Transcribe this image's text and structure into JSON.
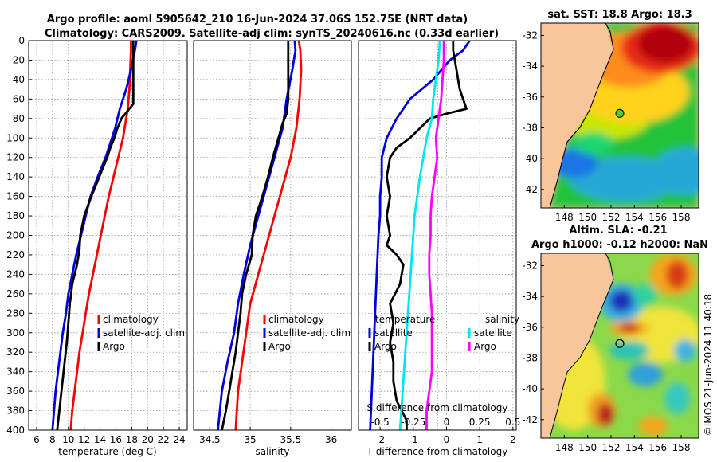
{
  "header": {
    "title_line1": "Argo profile: aoml 5905642_210 16-Jun-2024 37.06S 152.75E (NRT data)",
    "title_line2": "Climatology: CARS2009. Satellite-adj clim: synTS_20240616.nc (0.33d earlier)"
  },
  "colors": {
    "climatology": "#ff0000",
    "satellite": "#0000e0",
    "argo": "#000000",
    "sat_salinity": "#00e5ee",
    "argo_salinity": "#ff00ff"
  },
  "chart_data": [
    {
      "type": "line",
      "name": "temperature",
      "xlabel": "temperature (deg C)",
      "ylabel": "",
      "xlim": [
        5,
        25
      ],
      "ylim": [
        400,
        0
      ],
      "xticks": [
        "6",
        "8",
        "10",
        "12",
        "14",
        "16",
        "18",
        "20",
        "22",
        "24"
      ],
      "yticks": [
        "0",
        "20",
        "40",
        "60",
        "80",
        "100",
        "120",
        "140",
        "160",
        "180",
        "200",
        "220",
        "240",
        "260",
        "280",
        "300",
        "320",
        "340",
        "360",
        "380",
        "400"
      ],
      "series": [
        {
          "name": "climatology",
          "key": "climatology",
          "depth": [
            0,
            10,
            30,
            50,
            70,
            90,
            100,
            120,
            140,
            160,
            180,
            200,
            220,
            240,
            260,
            280,
            300,
            320,
            340,
            360,
            380,
            400
          ],
          "values": [
            17.9,
            17.9,
            17.8,
            17.7,
            17.5,
            17.1,
            16.9,
            16.3,
            15.7,
            15.1,
            14.6,
            14.1,
            13.6,
            13.1,
            12.6,
            12.2,
            11.8,
            11.4,
            11.1,
            10.8,
            10.5,
            10.3
          ]
        },
        {
          "name": "satellite-adj. clim",
          "key": "satellite",
          "depth": [
            0,
            10,
            30,
            50,
            70,
            90,
            100,
            120,
            140,
            160,
            180,
            200,
            220,
            240,
            260,
            280,
            300,
            320,
            340,
            360,
            380,
            400
          ],
          "values": [
            18.6,
            18.4,
            17.9,
            17.3,
            16.5,
            15.9,
            15.5,
            14.7,
            13.7,
            12.8,
            12.2,
            11.6,
            11.0,
            10.5,
            10.0,
            9.7,
            9.3,
            9.0,
            8.7,
            8.4,
            8.2,
            8.0
          ]
        },
        {
          "name": "Argo",
          "key": "argo",
          "depth": [
            0,
            10,
            40,
            65,
            75,
            80,
            90,
            100,
            110,
            120,
            140,
            160,
            180,
            200,
            215,
            230,
            250,
            270,
            290,
            310,
            340,
            370,
            400
          ],
          "values": [
            18.2,
            18.2,
            18.2,
            18.2,
            17.2,
            16.7,
            16.2,
            15.8,
            15.3,
            14.9,
            13.9,
            12.9,
            12.0,
            11.5,
            11.4,
            11.1,
            10.5,
            10.2,
            10.0,
            9.8,
            9.4,
            9.0,
            8.6
          ]
        }
      ],
      "legend": [
        "climatology",
        "satellite-adj. clim",
        "Argo"
      ]
    },
    {
      "type": "line",
      "name": "salinity",
      "xlabel": "salinity",
      "ylabel": "",
      "xlim": [
        34.3,
        36.25
      ],
      "ylim": [
        400,
        0
      ],
      "xticks": [
        "34.5",
        "35",
        "35.5",
        "36"
      ],
      "series": [
        {
          "name": "climatology",
          "key": "climatology",
          "depth": [
            0,
            10,
            30,
            60,
            90,
            120,
            150,
            180,
            210,
            240,
            270,
            300,
            330,
            360,
            400
          ],
          "values": [
            35.6,
            35.62,
            35.63,
            35.61,
            35.57,
            35.5,
            35.4,
            35.3,
            35.2,
            35.1,
            35.0,
            34.95,
            34.9,
            34.85,
            34.82
          ]
        },
        {
          "name": "satellite-adj. clim",
          "key": "satellite",
          "depth": [
            0,
            10,
            30,
            60,
            90,
            120,
            150,
            180,
            210,
            240,
            270,
            300,
            330,
            360,
            400
          ],
          "values": [
            35.55,
            35.56,
            35.52,
            35.45,
            35.4,
            35.3,
            35.2,
            35.1,
            35.0,
            34.92,
            34.85,
            34.8,
            34.72,
            34.65,
            34.6
          ]
        },
        {
          "name": "Argo",
          "key": "argo",
          "depth": [
            0,
            20,
            40,
            60,
            75,
            85,
            100,
            120,
            140,
            160,
            180,
            200,
            220,
            240,
            260,
            280,
            300,
            320,
            340,
            360,
            380,
            400
          ],
          "values": [
            35.47,
            35.47,
            35.47,
            35.47,
            35.45,
            35.4,
            35.35,
            35.28,
            35.22,
            35.15,
            35.07,
            35.03,
            35.02,
            34.95,
            34.9,
            34.88,
            34.85,
            34.82,
            34.78,
            34.74,
            34.7,
            34.65
          ]
        }
      ],
      "legend": [
        "climatology",
        "satellite-adj. clim",
        "Argo"
      ]
    },
    {
      "type": "line",
      "name": "difference",
      "xlabel": "T difference from climatology",
      "xlim": [
        -2.65,
        2.1
      ],
      "ylim": [
        400,
        0
      ],
      "xticks": [
        "-2",
        "-1",
        "0",
        "1",
        "2"
      ],
      "top_xlabel": "S difference from climatology",
      "top_xticks": [
        "-0.5",
        "-0.25",
        "0",
        "0.25",
        "0.5"
      ],
      "series": [
        {
          "name": "satellite",
          "key": "satellite",
          "quantity": "temperature",
          "depth": [
            0,
            10,
            20,
            40,
            60,
            80,
            100,
            120,
            140,
            160,
            180,
            200,
            240,
            280,
            320,
            360,
            400
          ],
          "values": [
            0.7,
            0.5,
            0.1,
            -0.4,
            -1.1,
            -1.5,
            -1.8,
            -1.95,
            -1.95,
            -2.0,
            -2.0,
            -2.05,
            -2.1,
            -2.15,
            -2.2,
            -2.25,
            -2.3
          ]
        },
        {
          "name": "Argo",
          "key": "argo",
          "quantity": "temperature",
          "depth": [
            0,
            10,
            30,
            50,
            60,
            70,
            75,
            80,
            90,
            100,
            110,
            120,
            140,
            160,
            180,
            200,
            210,
            220,
            230,
            250,
            270,
            290,
            310,
            330,
            350,
            370,
            390,
            400
          ],
          "values": [
            0.2,
            0.2,
            0.3,
            0.4,
            0.5,
            0.6,
            0.0,
            -0.5,
            -0.8,
            -1.1,
            -1.5,
            -1.7,
            -1.8,
            -1.7,
            -1.8,
            -1.7,
            -1.8,
            -1.5,
            -1.3,
            -1.4,
            -1.7,
            -1.6,
            -1.7,
            -1.6,
            -1.6,
            -1.5,
            -1.2,
            -1.2
          ]
        },
        {
          "name": "satellite",
          "key": "sat_salinity",
          "quantity": "salinity",
          "depth": [
            0,
            20,
            40,
            60,
            80,
            100,
            140,
            180,
            220,
            260,
            300,
            340,
            380,
            400
          ],
          "values": [
            -0.05,
            -0.06,
            -0.08,
            -0.1,
            -0.11,
            -0.15,
            -0.2,
            -0.24,
            -0.26,
            -0.28,
            -0.3,
            -0.32,
            -0.34,
            -0.35
          ]
        },
        {
          "name": "Argo",
          "key": "argo_salinity",
          "quantity": "salinity",
          "depth": [
            0,
            20,
            40,
            60,
            80,
            100,
            120,
            140,
            160,
            180,
            200,
            220,
            240,
            260,
            280,
            300,
            320,
            340,
            360,
            380,
            400
          ],
          "values": [
            -0.02,
            -0.02,
            -0.03,
            -0.04,
            -0.06,
            -0.08,
            -0.07,
            -0.09,
            -0.11,
            -0.12,
            -0.12,
            -0.13,
            -0.13,
            -0.12,
            -0.11,
            -0.11,
            -0.11,
            -0.11,
            -0.13,
            -0.15,
            -0.15
          ]
        }
      ],
      "legend_temperature_title": "temperature",
      "legend_salinity_title": "salinity",
      "legend": [
        "satellite",
        "Argo"
      ]
    }
  ],
  "maps": {
    "sst": {
      "title": "sat. SST: 18.8 Argo: 18.3",
      "xticks": [
        "148",
        "150",
        "152",
        "154",
        "156",
        "158"
      ],
      "yticks": [
        "-32",
        "-34",
        "-36",
        "-38",
        "-40",
        "-42"
      ],
      "xlim": [
        146,
        159.5
      ],
      "ylim": [
        -43.2,
        -31.2
      ],
      "argo_lon": 152.75,
      "argo_lat": -37.06
    },
    "sla": {
      "title": "Altim. SLA: -0.21",
      "subtitle": "Argo h1000: -0.12 h2000: NaN",
      "xticks": [
        "148",
        "150",
        "152",
        "154",
        "156",
        "158"
      ],
      "yticks": [
        "-32",
        "-34",
        "-36",
        "-38",
        "-40",
        "-42"
      ],
      "xlim": [
        146,
        159.5
      ],
      "ylim": [
        -43.2,
        -31.2
      ],
      "argo_lon": 152.75,
      "argo_lat": -37.06
    }
  },
  "watermark": "©IMOS 21-Jun-2024 11:40:18"
}
